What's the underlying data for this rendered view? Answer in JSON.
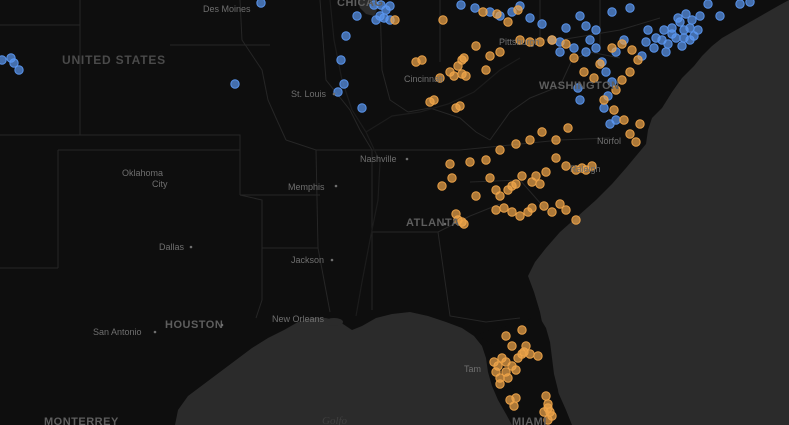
{
  "map": {
    "colors": {
      "land": "#0e0e0e",
      "water": "#2b2b2b",
      "state_border": "#262626",
      "label": "#6f6f6f",
      "series_blue": "#5b97f0",
      "series_orange": "#f0a54a"
    },
    "labels": {
      "country": "UNITED STATES",
      "des_moines": "Des Moines",
      "chicago": "CHICAG",
      "pittsburgh": "Pittsburgh",
      "cincinnati": "Cincinnati",
      "st_louis": "St. Louis",
      "washington": "WASHINGTON",
      "nashville": "Nashville",
      "norfolk": "Norfol",
      "raleigh": "Raleigh",
      "oklahoma_city_1": "Oklahoma",
      "oklahoma_city_2": "City",
      "memphis": "Memphis",
      "atlanta": "ATLANTA",
      "dallas": "Dallas",
      "jackson": "Jackson",
      "san_antonio": "San Antonio",
      "houston": "HOUSTON",
      "new_orleans": "New Orleans",
      "tampa": "Tam",
      "miami": "MIAMI",
      "monterrey": "MONTERREY",
      "gulf": "Golfo"
    }
  }
}
